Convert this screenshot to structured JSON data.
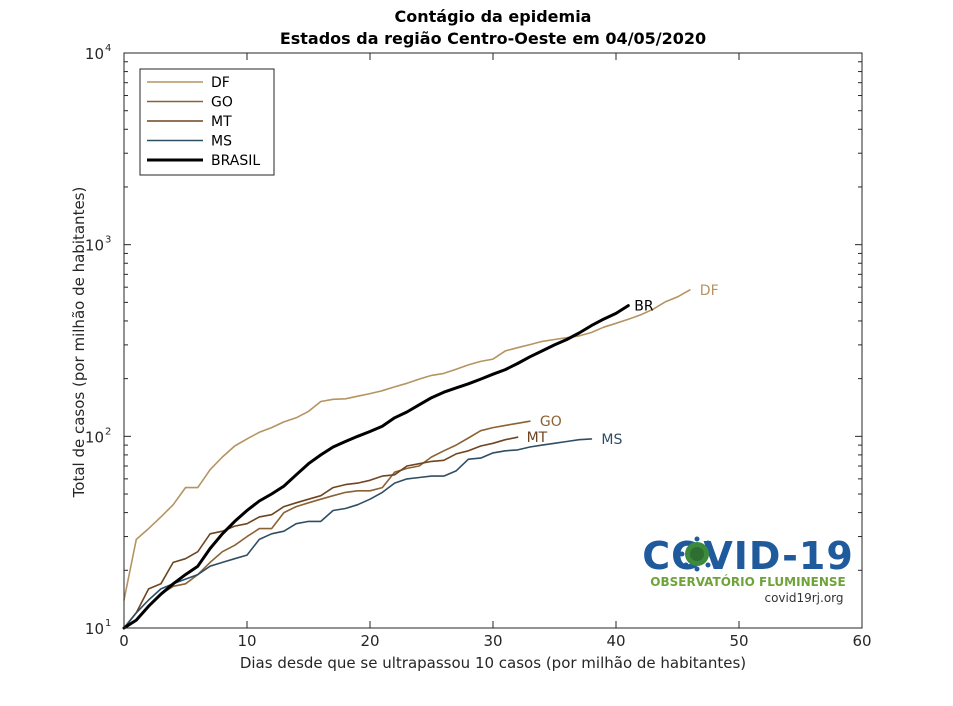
{
  "chart_data": {
    "type": "line",
    "title": "Contágio da epidemia",
    "subtitle": "Estados da região Centro-Oeste em 04/05/2020",
    "xlabel": "Dias desde que se ultrapassou 10 casos (por milhão de habitantes)",
    "ylabel": "Total de casos (por milhão de habitantes)",
    "xlim": [
      0,
      60
    ],
    "ylim": [
      10,
      10000
    ],
    "yscale": "log",
    "x_ticks": [
      "0",
      "10",
      "20",
      "30",
      "40",
      "50",
      "60"
    ],
    "y_ticks": [
      {
        "base": "10",
        "exp": "1"
      },
      {
        "base": "10",
        "exp": "2"
      },
      {
        "base": "10",
        "exp": "3"
      },
      {
        "base": "10",
        "exp": "4"
      }
    ],
    "grid": false,
    "legend_position": "top-left",
    "series": [
      {
        "name": "DF",
        "end_label": "DF",
        "color": "#b59461",
        "width": 1.6,
        "x": [
          0,
          1,
          2,
          3,
          4,
          5,
          6,
          7,
          8,
          9,
          10,
          11,
          12,
          13,
          14,
          15,
          16,
          17,
          18,
          19,
          20,
          21,
          22,
          23,
          24,
          25,
          26,
          27,
          28,
          29,
          30,
          31,
          32,
          33,
          34,
          35,
          36,
          37,
          38,
          39,
          40,
          41,
          42,
          43,
          44,
          45,
          46
        ],
        "y": [
          14,
          29,
          33,
          38,
          44,
          54,
          54,
          67,
          78,
          89,
          97,
          105,
          111,
          119,
          125,
          135,
          152,
          156,
          157,
          162,
          167,
          173,
          181,
          189,
          199,
          208,
          213,
          224,
          236,
          246,
          253,
          279,
          290,
          301,
          313,
          320,
          327,
          334,
          348,
          371,
          389,
          408,
          430,
          460,
          503,
          534,
          581
        ]
      },
      {
        "name": "GO",
        "end_label": "GO",
        "color": "#8b6233",
        "width": 1.6,
        "x": [
          0,
          1,
          2,
          3,
          4,
          5,
          6,
          7,
          8,
          9,
          10,
          11,
          12,
          13,
          14,
          15,
          16,
          17,
          18,
          19,
          20,
          21,
          22,
          23,
          24,
          25,
          26,
          27,
          28,
          29,
          30,
          31,
          32,
          33
        ],
        "y": [
          10,
          11,
          13,
          15,
          16.5,
          17,
          19,
          22,
          25,
          27,
          30,
          33,
          33,
          40,
          43,
          45,
          47,
          49,
          51,
          52,
          52,
          54,
          65,
          68,
          70,
          78,
          84,
          90,
          98,
          107,
          111,
          114,
          117,
          120
        ]
      },
      {
        "name": "MT",
        "end_label": "MT",
        "color": "#6e4520",
        "width": 1.6,
        "x": [
          0,
          1,
          2,
          3,
          4,
          5,
          6,
          7,
          8,
          9,
          10,
          11,
          12,
          13,
          14,
          15,
          16,
          17,
          18,
          19,
          20,
          21,
          22,
          23,
          24,
          25,
          26,
          27,
          28,
          29,
          30,
          31,
          32
        ],
        "y": [
          10,
          12,
          16,
          17,
          22,
          23,
          25,
          31,
          32,
          34,
          35,
          38,
          39,
          43,
          45,
          47,
          49,
          54,
          56,
          57,
          59,
          62,
          63,
          70,
          72,
          74,
          75,
          81,
          84,
          89,
          92,
          96,
          99
        ]
      },
      {
        "name": "MS",
        "end_label": "MS",
        "color": "#304e63",
        "width": 1.6,
        "x": [
          0,
          1,
          2,
          3,
          4,
          5,
          6,
          7,
          8,
          9,
          10,
          11,
          12,
          13,
          14,
          15,
          16,
          17,
          18,
          19,
          20,
          21,
          22,
          23,
          24,
          25,
          26,
          27,
          28,
          29,
          30,
          31,
          32,
          33,
          34,
          35,
          36,
          37,
          38
        ],
        "y": [
          10,
          12,
          14,
          16,
          17,
          18,
          19,
          21,
          22,
          23,
          24,
          29,
          31,
          32,
          35,
          36,
          36,
          41,
          42,
          44,
          47,
          51,
          57,
          60,
          61,
          62,
          62,
          66,
          76,
          77,
          82,
          84,
          85,
          88,
          90,
          92,
          94,
          96,
          97
        ]
      },
      {
        "name": "BRASIL",
        "end_label": "BR",
        "color": "#000000",
        "width": 3,
        "x": [
          0,
          1,
          2,
          3,
          4,
          5,
          6,
          7,
          8,
          9,
          10,
          11,
          12,
          13,
          14,
          15,
          16,
          17,
          18,
          19,
          20,
          21,
          22,
          23,
          24,
          25,
          26,
          27,
          28,
          29,
          30,
          31,
          32,
          33,
          34,
          35,
          36,
          37,
          38,
          39,
          40,
          41
        ],
        "y": [
          10,
          11,
          13,
          15,
          17,
          19,
          21,
          26,
          31,
          36,
          41,
          46,
          50,
          55,
          63,
          72,
          80,
          88,
          94,
          100,
          106,
          113,
          125,
          134,
          146,
          159,
          170,
          179,
          188,
          199,
          211,
          223,
          240,
          260,
          279,
          300,
          320,
          346,
          378,
          409,
          438,
          481
        ]
      }
    ]
  },
  "watermark": {
    "logo_text": "COVID-19",
    "subtitle": "OBSERVATÓRIO FLUMINENSE",
    "url": "covid19rj.org"
  }
}
